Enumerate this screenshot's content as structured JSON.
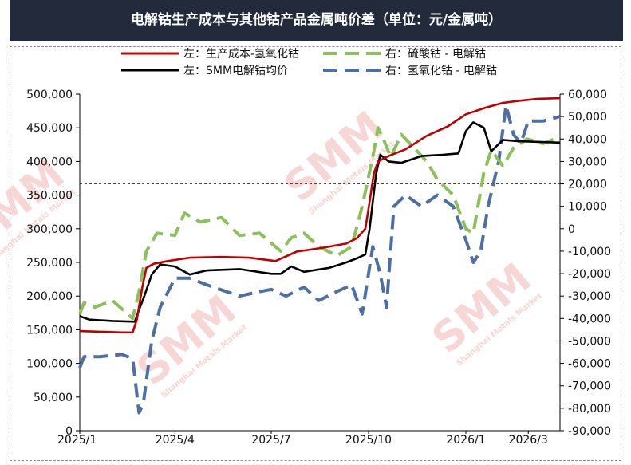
{
  "title": "电解钴生产成本与其他钴产品金属吨价差（单位：元/金属吨）",
  "watermark": {
    "brand": "SMM",
    "sub": "Shanghai Metals Market"
  },
  "chart_data": {
    "type": "line",
    "title": "电解钴生产成本与其他钴产品金属吨价差（单位：元/金属吨）",
    "x_ticks": [
      "2025/1",
      "2025/4",
      "2025/7",
      "2025/10",
      "2026/1",
      "2026/3"
    ],
    "x_tick_dates": [
      "2025-01-01",
      "2025-04-01",
      "2025-07-01",
      "2025-10-01",
      "2026-01-01",
      "2026-03-01"
    ],
    "xlim": [
      "2025-01-01",
      "2026-03-31"
    ],
    "y_left": {
      "ylim": [
        0,
        500000
      ],
      "ticks": [
        "0",
        "50,000",
        "100,000",
        "150,000",
        "200,000",
        "250,000",
        "300,000",
        "350,000",
        "400,000",
        "450,000",
        "500,000"
      ]
    },
    "y_right": {
      "ylim": [
        -90000,
        60000
      ],
      "ticks": [
        "-90,000",
        "-80,000",
        "-70,000",
        "-60,000",
        "-50,000",
        "-40,000",
        "-30,000",
        "-20,000",
        "-10,000",
        "0",
        "10,000",
        "20,000",
        "30,000",
        "40,000",
        "50,000",
        "60,000"
      ]
    },
    "reference_line": {
      "axis": "right",
      "value": 20000,
      "style": "dashed"
    },
    "legend_placement": "top",
    "series": [
      {
        "name": "左：生产成本-氢氧化钴",
        "axis": "left",
        "color": "#c00000",
        "dash": "solid",
        "points": [
          [
            "2025-01-01",
            148000
          ],
          [
            "2025-01-20",
            147000
          ],
          [
            "2025-02-10",
            146000
          ],
          [
            "2025-02-20",
            146000
          ],
          [
            "2025-02-24",
            165000
          ],
          [
            "2025-03-01",
            212000
          ],
          [
            "2025-03-05",
            242000
          ],
          [
            "2025-03-12",
            248000
          ],
          [
            "2025-03-25",
            252000
          ],
          [
            "2025-04-15",
            257000
          ],
          [
            "2025-05-15",
            258000
          ],
          [
            "2025-06-10",
            257000
          ],
          [
            "2025-06-25",
            254000
          ],
          [
            "2025-07-05",
            252000
          ],
          [
            "2025-07-25",
            266000
          ],
          [
            "2025-08-20",
            272000
          ],
          [
            "2025-09-10",
            278000
          ],
          [
            "2025-09-20",
            286000
          ],
          [
            "2025-09-28",
            300000
          ],
          [
            "2025-10-02",
            340000
          ],
          [
            "2025-10-06",
            382000
          ],
          [
            "2025-10-10",
            400000
          ],
          [
            "2025-10-20",
            408000
          ],
          [
            "2025-11-05",
            418000
          ],
          [
            "2025-11-25",
            438000
          ],
          [
            "2025-12-15",
            452000
          ],
          [
            "2026-01-01",
            470000
          ],
          [
            "2026-01-20",
            480000
          ],
          [
            "2026-02-05",
            487000
          ],
          [
            "2026-02-20",
            490000
          ],
          [
            "2026-03-10",
            493000
          ],
          [
            "2026-03-31",
            494000
          ]
        ]
      },
      {
        "name": "左：SMM电解钴均价",
        "axis": "left",
        "color": "#000000",
        "dash": "solid",
        "points": [
          [
            "2025-01-01",
            170000
          ],
          [
            "2025-01-10",
            165000
          ],
          [
            "2025-02-01",
            163000
          ],
          [
            "2025-02-22",
            162000
          ],
          [
            "2025-02-25",
            175000
          ],
          [
            "2025-03-03",
            200000
          ],
          [
            "2025-03-10",
            232000
          ],
          [
            "2025-03-18",
            247000
          ],
          [
            "2025-04-01",
            244000
          ],
          [
            "2025-04-15",
            232000
          ],
          [
            "2025-05-01",
            238000
          ],
          [
            "2025-06-01",
            240000
          ],
          [
            "2025-07-01",
            233000
          ],
          [
            "2025-07-10",
            233000
          ],
          [
            "2025-07-20",
            244000
          ],
          [
            "2025-08-01",
            236000
          ],
          [
            "2025-08-25",
            242000
          ],
          [
            "2025-09-10",
            250000
          ],
          [
            "2025-09-20",
            256000
          ],
          [
            "2025-09-28",
            262000
          ],
          [
            "2025-10-02",
            300000
          ],
          [
            "2025-10-08",
            380000
          ],
          [
            "2025-10-12",
            410000
          ],
          [
            "2025-10-20",
            400000
          ],
          [
            "2025-11-01",
            398000
          ],
          [
            "2025-11-20",
            408000
          ],
          [
            "2025-12-10",
            410000
          ],
          [
            "2025-12-25",
            412000
          ],
          [
            "2026-01-01",
            445000
          ],
          [
            "2026-01-08",
            458000
          ],
          [
            "2026-01-18",
            450000
          ],
          [
            "2026-01-25",
            415000
          ],
          [
            "2026-02-05",
            432000
          ],
          [
            "2026-02-20",
            430000
          ],
          [
            "2026-03-31",
            428000
          ]
        ]
      },
      {
        "name": "右：硫酸钴 - 电解钴",
        "axis": "right",
        "color": "#8bc05b",
        "dash": "dashed",
        "points": [
          [
            "2025-01-01",
            -38000
          ],
          [
            "2025-01-05",
            -33000
          ],
          [
            "2025-01-15",
            -35000
          ],
          [
            "2025-02-01",
            -32000
          ],
          [
            "2025-02-20",
            -40000
          ],
          [
            "2025-02-26",
            -28000
          ],
          [
            "2025-03-05",
            -10000
          ],
          [
            "2025-03-15",
            -2000
          ],
          [
            "2025-04-01",
            -3000
          ],
          [
            "2025-04-10",
            7000
          ],
          [
            "2025-04-25",
            3000
          ],
          [
            "2025-05-15",
            5000
          ],
          [
            "2025-06-01",
            -3000
          ],
          [
            "2025-06-20",
            -2000
          ],
          [
            "2025-07-10",
            -10000
          ],
          [
            "2025-07-20",
            -4000
          ],
          [
            "2025-08-01",
            -2000
          ],
          [
            "2025-08-15",
            -8000
          ],
          [
            "2025-09-01",
            -12000
          ],
          [
            "2025-09-15",
            -8000
          ],
          [
            "2025-09-25",
            10000
          ],
          [
            "2025-10-05",
            32000
          ],
          [
            "2025-10-10",
            45000
          ],
          [
            "2025-10-15",
            40000
          ],
          [
            "2025-10-22",
            32000
          ],
          [
            "2025-11-01",
            42000
          ],
          [
            "2025-11-15",
            35000
          ],
          [
            "2025-11-25",
            30000
          ],
          [
            "2025-12-05",
            22000
          ],
          [
            "2025-12-20",
            15000
          ],
          [
            "2026-01-01",
            0
          ],
          [
            "2026-01-08",
            -2000
          ],
          [
            "2026-01-18",
            25000
          ],
          [
            "2026-01-25",
            35000
          ],
          [
            "2026-02-05",
            28000
          ],
          [
            "2026-02-15",
            36000
          ],
          [
            "2026-02-28",
            40000
          ],
          [
            "2026-03-15",
            38000
          ],
          [
            "2026-03-31",
            41000
          ]
        ]
      },
      {
        "name": "右：氢氧化钴 - 电解钴",
        "axis": "right",
        "color": "#4e6fa3",
        "dash": "dashed",
        "points": [
          [
            "2025-01-01",
            -62000
          ],
          [
            "2025-01-05",
            -57000
          ],
          [
            "2025-01-20",
            -57000
          ],
          [
            "2025-02-10",
            -56000
          ],
          [
            "2025-02-20",
            -58000
          ],
          [
            "2025-02-26",
            -82000
          ],
          [
            "2025-03-02",
            -78000
          ],
          [
            "2025-03-10",
            -50000
          ],
          [
            "2025-03-18",
            -35000
          ],
          [
            "2025-04-01",
            -22000
          ],
          [
            "2025-04-15",
            -22000
          ],
          [
            "2025-05-01",
            -25000
          ],
          [
            "2025-06-01",
            -30000
          ],
          [
            "2025-06-20",
            -28000
          ],
          [
            "2025-07-01",
            -27000
          ],
          [
            "2025-07-15",
            -30000
          ],
          [
            "2025-08-01",
            -26000
          ],
          [
            "2025-08-15",
            -32000
          ],
          [
            "2025-09-01",
            -28000
          ],
          [
            "2025-09-15",
            -25000
          ],
          [
            "2025-09-25",
            -38000
          ],
          [
            "2025-10-05",
            -8000
          ],
          [
            "2025-10-12",
            -20000
          ],
          [
            "2025-10-18",
            -35000
          ],
          [
            "2025-10-25",
            10000
          ],
          [
            "2025-11-05",
            15000
          ],
          [
            "2025-11-20",
            10000
          ],
          [
            "2025-12-05",
            15000
          ],
          [
            "2025-12-20",
            10000
          ],
          [
            "2026-01-01",
            -5000
          ],
          [
            "2026-01-08",
            -15000
          ],
          [
            "2026-01-15",
            -10000
          ],
          [
            "2026-01-22",
            10000
          ],
          [
            "2026-02-01",
            30000
          ],
          [
            "2026-02-08",
            55000
          ],
          [
            "2026-02-15",
            42000
          ],
          [
            "2026-02-22",
            38000
          ],
          [
            "2026-03-01",
            48000
          ],
          [
            "2026-03-15",
            48000
          ],
          [
            "2026-03-31",
            50000
          ]
        ]
      }
    ]
  }
}
